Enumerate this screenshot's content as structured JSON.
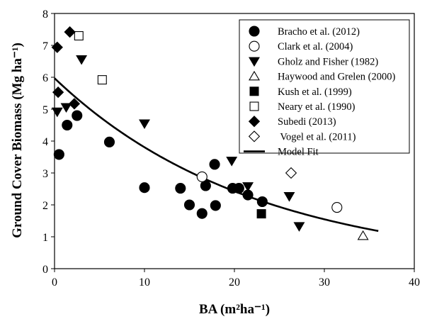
{
  "chart_data": {
    "type": "scatter",
    "xlabel": "BA (m²ha⁻¹)",
    "ylabel": "Ground Cover Biomass (Mg ha⁻¹)",
    "xlim": [
      0,
      40
    ],
    "ylim": [
      0,
      8
    ],
    "xticks": [
      "0",
      "10",
      "20",
      "30",
      "40"
    ],
    "yticks": [
      "0",
      "1",
      "2",
      "3",
      "4",
      "5",
      "6",
      "7",
      "8"
    ],
    "grid": false,
    "legend_position": "top-right",
    "series": [
      {
        "name": "Bracho et al. (2012)",
        "marker": "circle-filled",
        "points": [
          [
            0.5,
            3.58
          ],
          [
            1.4,
            4.5
          ],
          [
            2.5,
            4.8
          ],
          [
            6.1,
            3.97
          ],
          [
            10,
            2.54
          ],
          [
            14,
            2.52
          ],
          [
            15,
            2.0
          ],
          [
            16.4,
            1.73
          ],
          [
            16.8,
            2.6
          ],
          [
            17.8,
            3.27
          ],
          [
            17.9,
            1.98
          ],
          [
            19.8,
            2.52
          ],
          [
            20.5,
            2.52
          ],
          [
            21.5,
            2.31
          ],
          [
            23.1,
            2.1
          ]
        ]
      },
      {
        "name": "Clark et al. (2004)",
        "marker": "circle-open",
        "points": [
          [
            16.4,
            2.88
          ],
          [
            31.4,
            1.92
          ]
        ]
      },
      {
        "name": "Gholz and Fisher (1982)",
        "marker": "triangle-down-filled",
        "points": [
          [
            0.3,
            4.92
          ],
          [
            1.3,
            5.06
          ],
          [
            3.0,
            6.56
          ],
          [
            10,
            4.55
          ],
          [
            19.7,
            3.38
          ],
          [
            21.5,
            2.58
          ],
          [
            26.1,
            2.27
          ],
          [
            27.2,
            1.33
          ]
        ]
      },
      {
        "name": "Haywood and Grelen (2000)",
        "marker": "triangle-up-open",
        "points": [
          [
            34.3,
            1.03
          ]
        ]
      },
      {
        "name": "Kush et al. (1999)",
        "marker": "square-filled",
        "points": [
          [
            23,
            1.72
          ]
        ]
      },
      {
        "name": "Neary et al. (1990)",
        "marker": "square-open",
        "points": [
          [
            2.7,
            7.3
          ],
          [
            5.3,
            5.92
          ]
        ]
      },
      {
        "name": "Subedi (2013)",
        "marker": "diamond-filled",
        "points": [
          [
            0.3,
            6.94
          ],
          [
            0.4,
            5.53
          ],
          [
            1.7,
            7.42
          ],
          [
            2.2,
            5.17
          ]
        ]
      },
      {
        "name": " Vogel et al. (2011)",
        "marker": "diamond-open",
        "points": [
          [
            26.3,
            3.0
          ]
        ]
      },
      {
        "name": "Model Fit",
        "marker": "line",
        "curve": {
          "a": 5.97,
          "k": 0.045,
          "x_from": 0,
          "x_to": 36
        }
      }
    ]
  }
}
